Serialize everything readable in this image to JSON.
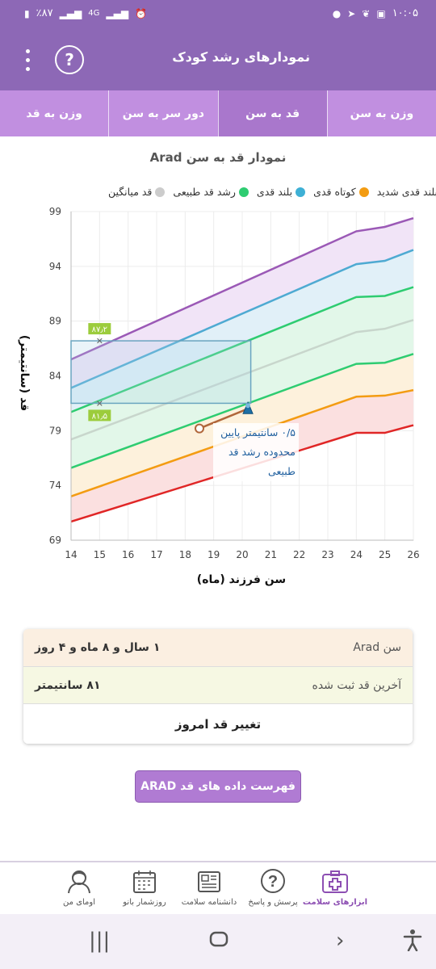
{
  "status_bar": {
    "time": "۱۰:۰۵",
    "battery": "٪۸۷",
    "network": "4G"
  },
  "app_bar": {
    "title": "نمودارهای رشد کودک",
    "help_label": "?"
  },
  "tabs": [
    {
      "label": "وزن به سن",
      "active": false
    },
    {
      "label": "قد به سن",
      "active": true
    },
    {
      "label": "دور سر به سن",
      "active": false
    },
    {
      "label": "وزن به قد",
      "active": false
    }
  ],
  "chart_title": "نمودار قد به سن Arad",
  "chart_data": {
    "type": "line",
    "xlabel": "سن فرزند (ماه)",
    "ylabel": "قد (سانتیمتر)",
    "xlim": [
      14,
      26
    ],
    "ylim": [
      69,
      99
    ],
    "x_ticks": [
      "14",
      "15",
      "16",
      "17",
      "18",
      "19",
      "20",
      "21",
      "22",
      "23",
      "24",
      "25",
      "26"
    ],
    "y_ticks": [
      "69",
      "74",
      "79",
      "84",
      "89",
      "94",
      "99"
    ],
    "legend": [
      {
        "name": "بلند قدی شدید",
        "color": "#9b59b6"
      },
      {
        "name": "کوتاه قدی",
        "color": "#f39c12"
      },
      {
        "name": "بلند قدی",
        "color": "#3eb0d5"
      },
      {
        "name": "رشد قد طبیعی",
        "color": "#2ecc71"
      },
      {
        "name": "قد میانگین",
        "color": "#cccccc"
      }
    ],
    "series": [
      {
        "color": "#9b59b6",
        "fill": "#f1e4f7",
        "x": [
          14,
          24,
          25,
          26
        ],
        "y": [
          85.5,
          97.2,
          97.6,
          98.4
        ]
      },
      {
        "color": "#4eaad2",
        "fill": "#e1f0f8",
        "x": [
          14,
          24,
          25,
          26
        ],
        "y": [
          82.9,
          94.2,
          94.5,
          95.5
        ]
      },
      {
        "color": "#2ecc71",
        "fill": "#e2f7e9",
        "x": [
          14,
          24,
          25,
          26
        ],
        "y": [
          80.7,
          91.2,
          91.3,
          92.1
        ]
      },
      {
        "color": "#c8d6cc",
        "fill": "#e2f7e9",
        "x": [
          14,
          24,
          25,
          26
        ],
        "y": [
          78.2,
          88.0,
          88.3,
          89.1
        ]
      },
      {
        "color": "#2ecc71",
        "fill": "#fdf1dc",
        "x": [
          14,
          24,
          25,
          26
        ],
        "y": [
          75.6,
          85.1,
          85.2,
          86.0
        ]
      },
      {
        "color": "#f39c12",
        "fill": "#fbe0e0",
        "x": [
          14,
          24,
          25,
          26
        ],
        "y": [
          73.0,
          82.1,
          82.2,
          82.7
        ]
      },
      {
        "color": "#e02626",
        "fill": null,
        "x": [
          14,
          24,
          25,
          26
        ],
        "y": [
          70.7,
          78.8,
          78.8,
          79.5
        ]
      }
    ],
    "measurement": {
      "from": {
        "x": 18.5,
        "y": 79.2
      },
      "to": {
        "x": 20.2,
        "y": 81.0
      }
    },
    "markers": [
      {
        "x": 15,
        "y": 87.2,
        "label": "۸۷٫۲",
        "color": "#9ccc3c"
      },
      {
        "x": 15,
        "y": 81.5,
        "label": "۸۱٫۵",
        "color": "#9ccc3c"
      }
    ],
    "annotation": "۰/۵ سانتیمتر پایین محدوده رشد قد طبیعی"
  },
  "annotation_lines": [
    "۰/۵ سانتیمتر پایین",
    "محدوده رشد قد طبیعی"
  ],
  "info": {
    "age_label": "سن Arad",
    "age_value": "۱ سال و ۸ ماه و ۴ روز",
    "height_label": "آخرین قد ثبت شده",
    "height_value": "۸۱ سانتیمتر",
    "change_label": "تغییر قد امروز"
  },
  "list_button": "فهرست داده های قد ARAD",
  "bottom_nav": [
    {
      "label": "ابزارهای سلامت",
      "icon": "medical-kit-icon",
      "active": true
    },
    {
      "label": "پرسش و پاسخ",
      "icon": "question-icon",
      "active": false
    },
    {
      "label": "دانشنامه سلامت",
      "icon": "newspaper-icon",
      "active": false
    },
    {
      "label": "روزشمار بانو",
      "icon": "calendar-icon",
      "active": false
    },
    {
      "label": "اومای من",
      "icon": "profile-icon",
      "active": false
    }
  ]
}
